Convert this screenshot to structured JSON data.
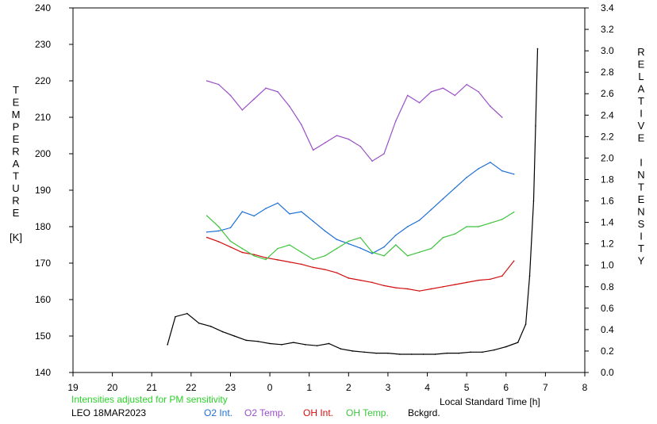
{
  "chart_data": {
    "type": "line",
    "xlabel": "Local Standard Time [h]",
    "x_ticks": [
      "19",
      "20",
      "21",
      "22",
      "23",
      "0",
      "1",
      "2",
      "3",
      "4",
      "5",
      "6",
      "7",
      "8"
    ],
    "xlim": [
      19,
      32
    ],
    "ylabel_left": [
      "T",
      "E",
      "M",
      "P",
      "E",
      "R",
      "A",
      "T",
      "U",
      "R",
      "E",
      "",
      "[K]"
    ],
    "ylim_left": [
      140,
      240
    ],
    "y_ticks_left": [
      "140",
      "150",
      "160",
      "170",
      "180",
      "190",
      "200",
      "210",
      "220",
      "230",
      "240"
    ],
    "ylabel_right": [
      "R",
      "E",
      "L",
      "A",
      "T",
      "I",
      "V",
      "E",
      "",
      "I",
      "N",
      "T",
      "E",
      "N",
      "S",
      "I",
      "T",
      "Y"
    ],
    "ylim_right": [
      0.0,
      3.4
    ],
    "y_ticks_right": [
      "0.0",
      "0.2",
      "0.4",
      "0.6",
      "0.8",
      "1.0",
      "1.2",
      "1.4",
      "1.6",
      "1.8",
      "2.0",
      "2.2",
      "2.4",
      "2.6",
      "2.8",
      "3.0",
      "3.2",
      "3.4"
    ],
    "note": "Intensities adjusted for PM sensitivity",
    "station": "LEO 18MAR2023",
    "grid": false,
    "series": [
      {
        "name": "O2 Int.",
        "axis": "right",
        "color": "#1f6fd6",
        "x": [
          22.4,
          22.7,
          23.0,
          23.3,
          23.6,
          23.9,
          24.2,
          24.5,
          24.8,
          25.1,
          25.4,
          25.7,
          26.0,
          26.3,
          26.6,
          26.9,
          27.2,
          27.5,
          27.8,
          28.1,
          28.4,
          28.7,
          29.0,
          29.3,
          29.6,
          29.9,
          30.2
        ],
        "y": [
          1.31,
          1.32,
          1.35,
          1.5,
          1.46,
          1.53,
          1.58,
          1.48,
          1.5,
          1.41,
          1.32,
          1.24,
          1.2,
          1.16,
          1.11,
          1.17,
          1.28,
          1.36,
          1.42,
          1.52,
          1.62,
          1.72,
          1.82,
          1.9,
          1.96,
          1.88,
          1.85
        ]
      },
      {
        "name": "O2 Temp.",
        "axis": "left",
        "color": "#9a4fc7",
        "x": [
          22.4,
          22.7,
          23.0,
          23.3,
          23.6,
          23.9,
          24.2,
          24.5,
          24.8,
          25.1,
          25.4,
          25.7,
          26.0,
          26.3,
          26.6,
          26.9,
          27.2,
          27.5,
          27.8,
          28.1,
          28.4,
          28.7,
          29.0,
          29.3,
          29.6,
          29.9
        ],
        "y": [
          220,
          219,
          216,
          212,
          215,
          218,
          217,
          213,
          208,
          201,
          203,
          205,
          204,
          202,
          198,
          200,
          209,
          216,
          214,
          217,
          218,
          216,
          219,
          217,
          213,
          210
        ]
      },
      {
        "name": "OH Int.",
        "axis": "right",
        "color": "#d20f0f",
        "x": [
          22.4,
          22.7,
          23.0,
          23.3,
          23.6,
          23.9,
          24.2,
          24.5,
          24.8,
          25.1,
          25.4,
          25.7,
          26.0,
          26.3,
          26.6,
          26.9,
          27.2,
          27.5,
          27.8,
          28.1,
          28.4,
          28.7,
          29.0,
          29.3,
          29.6,
          29.9,
          30.2
        ],
        "y": [
          1.26,
          1.22,
          1.17,
          1.12,
          1.1,
          1.07,
          1.05,
          1.03,
          1.01,
          0.98,
          0.96,
          0.93,
          0.88,
          0.86,
          0.84,
          0.81,
          0.79,
          0.78,
          0.76,
          0.78,
          0.8,
          0.82,
          0.84,
          0.86,
          0.87,
          0.9,
          1.04
        ]
      },
      {
        "name": "OH Temp.",
        "axis": "left",
        "color": "#3ec43e",
        "x": [
          22.4,
          22.7,
          23.0,
          23.3,
          23.6,
          23.9,
          24.2,
          24.5,
          24.8,
          25.1,
          25.4,
          25.7,
          26.0,
          26.3,
          26.6,
          26.9,
          27.2,
          27.5,
          27.8,
          28.1,
          28.4,
          28.7,
          29.0,
          29.3,
          29.6,
          29.9,
          30.2
        ],
        "y": [
          183,
          180,
          176,
          174,
          172,
          171,
          174,
          175,
          173,
          171,
          172,
          174,
          176,
          177,
          173,
          172,
          175,
          172,
          173,
          174,
          177,
          178,
          180,
          180,
          181,
          182,
          184
        ]
      },
      {
        "name": "Bckgrd.",
        "axis": "right",
        "color": "#000000",
        "x": [
          21.4,
          21.6,
          21.9,
          22.2,
          22.5,
          22.8,
          23.1,
          23.4,
          23.7,
          24.0,
          24.3,
          24.6,
          24.9,
          25.2,
          25.5,
          25.8,
          26.1,
          26.4,
          26.7,
          27.0,
          27.3,
          27.6,
          27.9,
          28.2,
          28.5,
          28.8,
          29.1,
          29.4,
          29.7,
          30.0,
          30.3,
          30.5,
          30.6,
          30.7,
          30.75,
          30.8
        ],
        "y": [
          0.26,
          0.52,
          0.55,
          0.46,
          0.43,
          0.38,
          0.34,
          0.3,
          0.29,
          0.27,
          0.26,
          0.28,
          0.26,
          0.25,
          0.27,
          0.22,
          0.2,
          0.19,
          0.18,
          0.18,
          0.17,
          0.17,
          0.17,
          0.17,
          0.18,
          0.18,
          0.19,
          0.19,
          0.21,
          0.24,
          0.28,
          0.45,
          0.9,
          1.6,
          2.3,
          3.02
        ]
      }
    ]
  }
}
